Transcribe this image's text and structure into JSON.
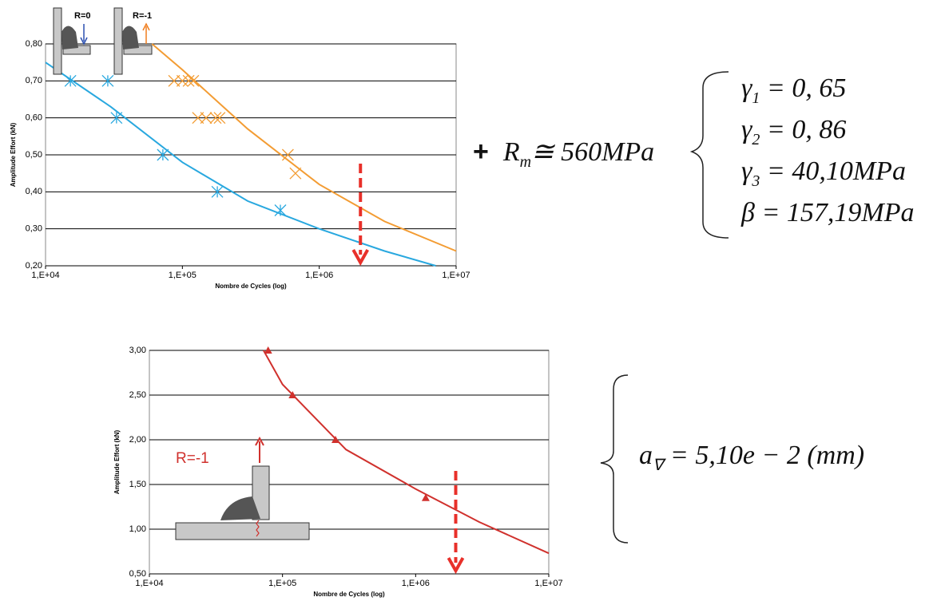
{
  "chart_data": [
    {
      "type": "scatter",
      "xlabel": "Nombre de Cycles (log)",
      "ylabel": "Amplitude Effort (kN)",
      "xlog": true,
      "grid": true,
      "xlim": [
        10000,
        10000000
      ],
      "xticks": [
        {
          "value": 10000,
          "label": "1,E+04"
        },
        {
          "value": 100000,
          "label": "1,E+05"
        },
        {
          "value": 1000000,
          "label": "1,E+06"
        },
        {
          "value": 10000000,
          "label": "1,E+07"
        }
      ],
      "ylim": [
        0.2,
        0.8
      ],
      "yticks": [
        {
          "value": 0.2,
          "label": "0,20"
        },
        {
          "value": 0.3,
          "label": "0,30"
        },
        {
          "value": 0.4,
          "label": "0,40"
        },
        {
          "value": 0.5,
          "label": "0,50"
        },
        {
          "value": 0.6,
          "label": "0,60"
        },
        {
          "value": 0.7,
          "label": "0,70"
        },
        {
          "value": 0.8,
          "label": "0,80"
        }
      ],
      "annotations": [
        "R=0",
        "R=-1"
      ],
      "reference_x": 2000000,
      "series": [
        {
          "color": "#29a8df",
          "marker": "asterisk",
          "x": [
            15200,
            28500,
            33000,
            72000,
            180000,
            520000
          ],
          "values": [
            0.7,
            0.7,
            0.6,
            0.5,
            0.4,
            0.35
          ]
        },
        {
          "color": "#f39c33",
          "marker": "cross",
          "x": [
            87000,
            100000,
            111000,
            120000,
            130000,
            149000,
            175000,
            187000,
            590000,
            670000
          ],
          "values": [
            0.7,
            0.7,
            0.7,
            0.7,
            0.6,
            0.6,
            0.6,
            0.6,
            0.5,
            0.45
          ]
        },
        {
          "color": "#29a8df",
          "marker": "line",
          "x": [
            10000,
            30000,
            100000,
            300000,
            1000000,
            3000000,
            7100000
          ],
          "values": [
            0.75,
            0.63,
            0.48,
            0.375,
            0.3,
            0.24,
            0.2
          ]
        },
        {
          "color": "#f39c33",
          "marker": "line",
          "x": [
            60000,
            100000,
            300000,
            1000000,
            3000000,
            10000000
          ],
          "values": [
            0.8,
            0.73,
            0.57,
            0.42,
            0.32,
            0.24
          ]
        }
      ]
    },
    {
      "type": "scatter",
      "xlabel": "Nombre de Cycles (log)",
      "ylabel": "Amplitude Effort (kN)",
      "xlog": true,
      "grid": true,
      "xlim": [
        10000,
        10000000
      ],
      "xticks": [
        {
          "value": 10000,
          "label": "1,E+04"
        },
        {
          "value": 100000,
          "label": "1,E+05"
        },
        {
          "value": 1000000,
          "label": "1,E+06"
        },
        {
          "value": 10000000,
          "label": "1,E+07"
        }
      ],
      "ylim": [
        0.5,
        3.0
      ],
      "yticks": [
        {
          "value": 0.5,
          "label": "0,50"
        },
        {
          "value": 1.0,
          "label": "1,00"
        },
        {
          "value": 1.5,
          "label": "1,50"
        },
        {
          "value": 2.0,
          "label": "2,00"
        },
        {
          "value": 2.5,
          "label": "2,50"
        },
        {
          "value": 3.0,
          "label": "3,00"
        }
      ],
      "annotations": [
        "R=-1"
      ],
      "reference_x": 2000000,
      "series": [
        {
          "color": "#d0312d",
          "marker": "triangle",
          "x": [
            78000,
            119000,
            250000,
            1190000
          ],
          "values": [
            3.0,
            2.5,
            2.0,
            1.35
          ]
        },
        {
          "color": "#d0312d",
          "marker": "line",
          "x": [
            72000,
            100000,
            300000,
            1000000,
            3000000,
            10000000
          ],
          "values": [
            3.0,
            2.62,
            1.89,
            1.45,
            1.08,
            0.73
          ]
        }
      ]
    }
  ],
  "equations": {
    "top": [
      {
        "prefix": "+",
        "lhs": "R",
        "sub": "m",
        "rhs": "≅ 560MPa"
      },
      {
        "lhs": "γ",
        "sub": "1",
        "rhs": "= 0, 65"
      },
      {
        "lhs": "γ",
        "sub": "2",
        "rhs": "= 0, 86"
      },
      {
        "lhs": "γ",
        "sub": "3",
        "rhs": "= 40,10MPa"
      },
      {
        "lhs": "β",
        "sub": "",
        "rhs": "= 157,19MPa"
      }
    ],
    "bottom": [
      {
        "lhs": "a",
        "sub": "∇",
        "rhs": "= 5,10e − 2 (mm)"
      }
    ]
  }
}
